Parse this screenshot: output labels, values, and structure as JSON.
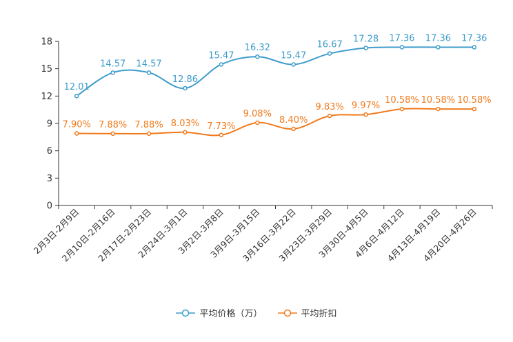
{
  "colors": {
    "price": "#3d9ccc",
    "discount": "#f17a1c",
    "axis": "#333333",
    "grid": "#dddddd"
  },
  "chart_data": {
    "type": "line",
    "title": "",
    "xlabel": "",
    "ylabel": "",
    "ylim": [
      0,
      18
    ],
    "yticks": [
      0,
      3,
      6,
      9,
      12,
      15,
      18
    ],
    "grid": false,
    "categories": [
      "2月3日-2月9日",
      "2月10日-2月16日",
      "2月17日-2月23日",
      "2月24日-3月1日",
      "3月2日-3月8日",
      "3月9日-3月15日",
      "3月16日-3月22日",
      "3月23日-3月29日",
      "3月30日-4月5日",
      "4月6日-4月12日",
      "4月13日-4月19日",
      "4月20日-4月26日"
    ],
    "series": [
      {
        "name": "平均价格（万）",
        "values": [
          12.01,
          14.57,
          14.57,
          12.86,
          15.47,
          16.32,
          15.47,
          16.67,
          17.28,
          17.36,
          17.36,
          17.36
        ],
        "labels": [
          "12.01",
          "14.57",
          "14.57",
          "12.86",
          "15.47",
          "16.32",
          "15.47",
          "16.67",
          "17.28",
          "17.36",
          "17.36",
          "17.36"
        ]
      },
      {
        "name": "平均折扣",
        "values": [
          7.9,
          7.88,
          7.88,
          8.03,
          7.73,
          9.08,
          8.4,
          9.83,
          9.97,
          10.58,
          10.58,
          10.58
        ],
        "labels": [
          "7.90%",
          "7.88%",
          "7.88%",
          "8.03%",
          "7.73%",
          "9.08%",
          "8.40%",
          "9.83%",
          "9.97%",
          "10.58%",
          "10.58%",
          "10.58%"
        ]
      }
    ],
    "legend_position": "bottom-center"
  }
}
